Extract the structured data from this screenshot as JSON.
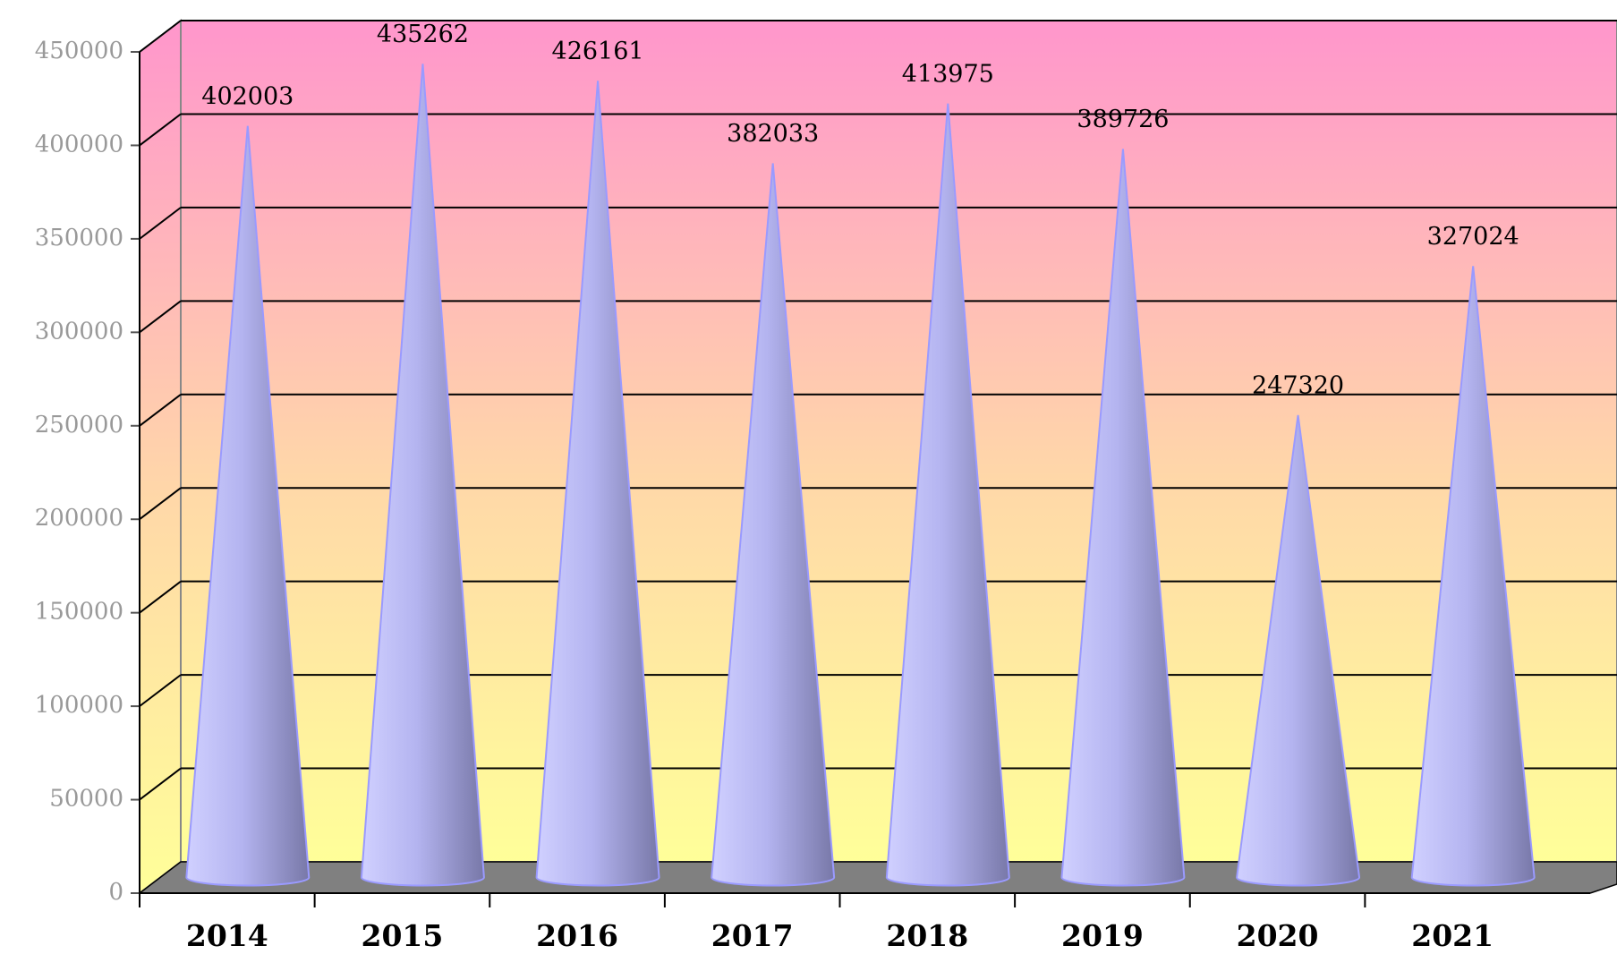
{
  "chart_data": {
    "type": "cone",
    "categories": [
      "2014",
      "2015",
      "2016",
      "2017",
      "2018",
      "2019",
      "2020",
      "2021"
    ],
    "values": [
      402003,
      435262,
      426161,
      382033,
      413975,
      389726,
      247320,
      327024
    ],
    "color": "#b4b4f0",
    "ylim": [
      0,
      450000
    ],
    "yticks": [
      0,
      50000,
      100000,
      150000,
      200000,
      250000,
      300000,
      350000,
      400000,
      450000
    ],
    "grid": true
  }
}
